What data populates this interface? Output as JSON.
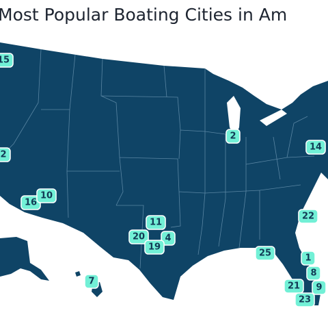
{
  "title": "Most Popular Boating Cities in Am",
  "markers": [
    "15",
    "2",
    "16",
    "10",
    "11",
    "20",
    "4",
    "19",
    "2",
    "14",
    "22",
    "25",
    "1",
    "8",
    "9",
    "21",
    "23",
    "7"
  ]
}
